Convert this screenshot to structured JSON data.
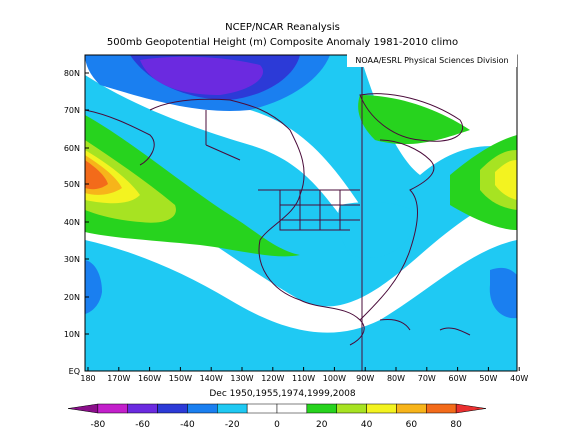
{
  "title": "NCEP/NCAR Reanalysis",
  "subtitle": "500mb Geopotential Height (m) Composite Anomaly 1981-2010 climo",
  "credit": "NOAA/ESRL Physical Sciences Division",
  "caption": "Dec 1950,1955,1974,1999,2008",
  "lat_labels": [
    "80N",
    "70N",
    "60N",
    "50N",
    "40N",
    "30N",
    "20N",
    "10N",
    "EQ"
  ],
  "lon_labels": [
    "180",
    "170W",
    "160W",
    "150W",
    "140W",
    "130W",
    "120W",
    "110W",
    "100W",
    "90W",
    "80W",
    "70W",
    "60W",
    "50W",
    "40W"
  ],
  "colorbar": {
    "ticks": [
      "-80",
      "-60",
      "-40",
      "-20",
      "0",
      "20",
      "40",
      "60",
      "80"
    ],
    "colors": [
      "#8a0e8a",
      "#c31fcb",
      "#6b2ae0",
      "#2c3ad7",
      "#1a7ff0",
      "#1fc9f3",
      "#ffffff",
      "#ffffff",
      "#27d31e",
      "#a7e322",
      "#f3f320",
      "#f7b41a",
      "#f36b1a",
      "#ea2f2f"
    ]
  },
  "anomaly_colors": {
    "pos_light": "#27d31e",
    "pos_med": "#a7e322",
    "pos_strong": "#f3f320",
    "pos_very_strong": "#f7b41a",
    "pos_extreme": "#f36b1a",
    "neg_light": "#1fc9f3",
    "neg_med": "#1a7ff0",
    "neg_strong": "#2c3ad7",
    "neg_extreme": "#6b2ae0"
  }
}
